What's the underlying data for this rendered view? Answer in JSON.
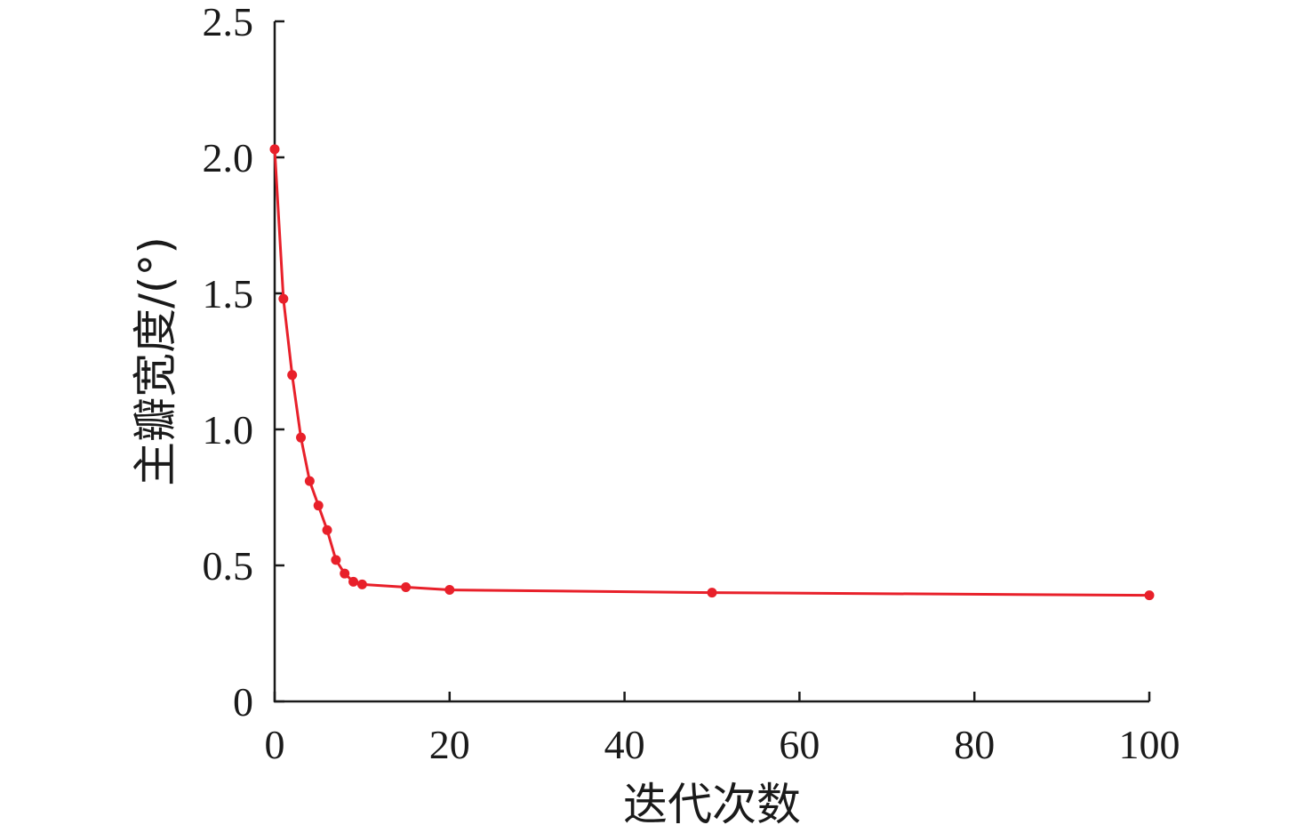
{
  "chart_data": {
    "type": "line",
    "xlabel": "迭代次数",
    "ylabel": "主瓣宽度/(°)",
    "xlim": [
      0,
      100
    ],
    "ylim": [
      0,
      2.5
    ],
    "xticks": [
      0,
      20,
      40,
      60,
      80,
      100
    ],
    "xtick_labels": [
      "0",
      "20",
      "40",
      "60",
      "80",
      "100"
    ],
    "yticks": [
      0,
      0.5,
      1.0,
      1.5,
      2.0,
      2.5
    ],
    "ytick_labels": [
      "0",
      "0.5",
      "1.0",
      "1.5",
      "2.0",
      "2.5"
    ],
    "grid": false,
    "legend": "none",
    "series": [
      {
        "color": "#e8202a",
        "marker": "circle",
        "x": [
          0,
          1,
          2,
          3,
          4,
          5,
          6,
          7,
          8,
          9,
          10,
          15,
          20,
          50,
          100
        ],
        "y": [
          2.03,
          1.48,
          1.2,
          0.97,
          0.81,
          0.72,
          0.63,
          0.52,
          0.47,
          0.44,
          0.43,
          0.42,
          0.41,
          0.4,
          0.39
        ]
      }
    ]
  }
}
